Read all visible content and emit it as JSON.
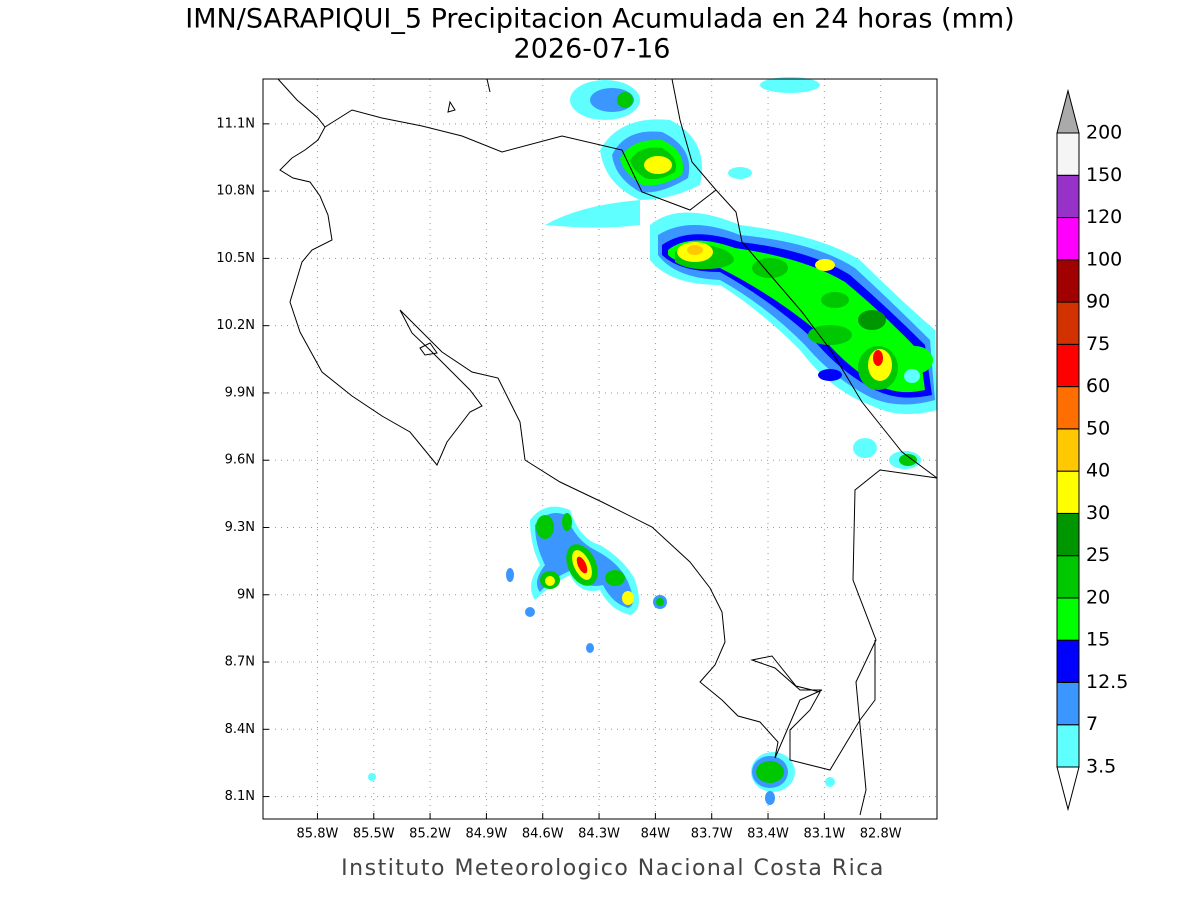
{
  "map": {
    "title": "IMN/SARAPIQUI_5 Precipitacion Acumulada en 24 horas (mm)",
    "subtitle": "2026-07-16",
    "lon_range": [
      -86.09,
      -82.5
    ],
    "lat_range": [
      8.0,
      11.3
    ],
    "lon_ticks": [
      {
        "value": -85.8,
        "label": "85.8W"
      },
      {
        "value": -85.5,
        "label": "85.5W"
      },
      {
        "value": -85.2,
        "label": "85.2W"
      },
      {
        "value": -84.9,
        "label": "84.9W"
      },
      {
        "value": -84.6,
        "label": "84.6W"
      },
      {
        "value": -84.3,
        "label": "84.3W"
      },
      {
        "value": -84.0,
        "label": "84W"
      },
      {
        "value": -83.7,
        "label": "83.7W"
      },
      {
        "value": -83.4,
        "label": "83.4W"
      },
      {
        "value": -83.1,
        "label": "83.1W"
      },
      {
        "value": -82.8,
        "label": "82.8W"
      }
    ],
    "lat_ticks": [
      {
        "value": 11.1,
        "label": "11.1N"
      },
      {
        "value": 10.8,
        "label": "10.8N"
      },
      {
        "value": 10.5,
        "label": "10.5N"
      },
      {
        "value": 10.2,
        "label": "10.2N"
      },
      {
        "value": 9.9,
        "label": "9.9N"
      },
      {
        "value": 9.6,
        "label": "9.6N"
      },
      {
        "value": 9.3,
        "label": "9.3N"
      },
      {
        "value": 9.0,
        "label": "9N"
      },
      {
        "value": 8.7,
        "label": "8.7N"
      },
      {
        "value": 8.4,
        "label": "8.4N"
      },
      {
        "value": 8.1,
        "label": "8.1N"
      }
    ],
    "grid": true,
    "colorbar": {
      "levels": [
        3.5,
        7,
        12.5,
        15,
        20,
        25,
        30,
        40,
        50,
        60,
        75,
        90,
        100,
        120,
        150,
        200
      ],
      "colors": [
        "#ffffff",
        "#5fffff",
        "#3c96ff",
        "#0000ff",
        "#00ff00",
        "#00c800",
        "#009600",
        "#ffff00",
        "#ffc800",
        "#ff6e00",
        "#ff0000",
        "#d23200",
        "#a00000",
        "#ff00ff",
        "#9632c8",
        "#f5f5f5",
        "#aaaaaa"
      ]
    },
    "footer": "Instituto Meteorologico Nacional Costa Rica"
  }
}
